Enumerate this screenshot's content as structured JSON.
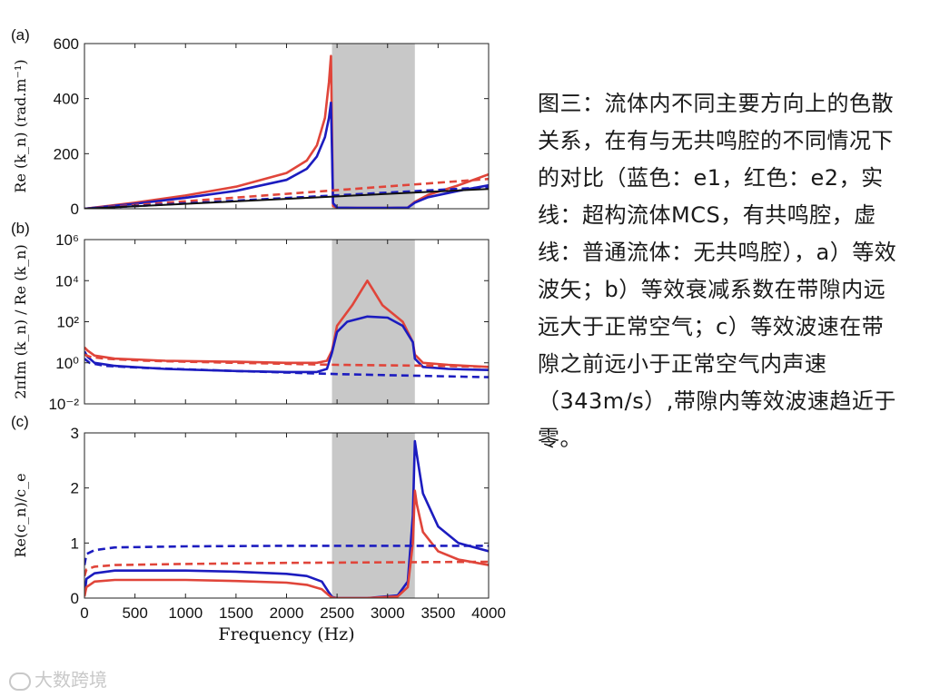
{
  "caption": "图三：流体内不同主要方向上的色散关系，在有与无共鸣腔的不同情况下的对比（蓝色：e1，红色：e2，实线：超构流体MCS，有共鸣腔，虚线：普通流体：无共鸣腔），a）等效波矢；b）等效衰减系数在带隙内远远大于正常空气；c）等效波速在带隙之前远小于正常空气内声速（343m/s）,带隙内等效波速趋近于零。",
  "watermark": "大数跨境",
  "colors": {
    "red": "#e0453a",
    "blue": "#1c1cbf",
    "black": "#111111",
    "band": "#c8c8c8"
  },
  "chart_data": [
    {
      "panel": "(a)",
      "type": "line",
      "ylabel": "Re (k_n)  (rad.m⁻¹)",
      "xlim": [
        0,
        4000
      ],
      "ylim": [
        0,
        600
      ],
      "yticks": [
        "0",
        "200",
        "400",
        "600"
      ],
      "yscale": "linear",
      "bandgap": [
        2450,
        3270
      ],
      "series": [
        {
          "name": "e2, MCS",
          "color": "red",
          "style": "solid",
          "x": [
            0,
            500,
            1000,
            1500,
            2000,
            2200,
            2300,
            2380,
            2420,
            2440,
            2460,
            2500,
            2700,
            3000,
            3200,
            3270,
            3400,
            3700,
            4000
          ],
          "y": [
            0,
            22,
            48,
            80,
            130,
            175,
            230,
            330,
            460,
            555,
            10,
            3,
            3,
            3,
            4,
            25,
            50,
            85,
            125
          ]
        },
        {
          "name": "e1, MCS",
          "color": "blue",
          "style": "solid",
          "x": [
            0,
            500,
            1000,
            1500,
            2000,
            2200,
            2300,
            2380,
            2420,
            2440,
            2450,
            2460,
            2500,
            2700,
            3000,
            3200,
            3270,
            3400,
            3700,
            4000
          ],
          "y": [
            0,
            18,
            40,
            65,
            105,
            145,
            190,
            260,
            330,
            385,
            200,
            20,
            4,
            3,
            3,
            4,
            22,
            42,
            65,
            85
          ]
        },
        {
          "name": "e2, fluid",
          "color": "red",
          "style": "dashed",
          "x": [
            0,
            4000
          ],
          "y": [
            0,
            108
          ]
        },
        {
          "name": "e1, fluid",
          "color": "blue",
          "style": "dashed",
          "x": [
            0,
            4000
          ],
          "y": [
            0,
            78
          ]
        },
        {
          "name": "air",
          "color": "black",
          "style": "solid",
          "x": [
            0,
            4000
          ],
          "y": [
            0,
            72
          ]
        }
      ]
    },
    {
      "panel": "(b)",
      "type": "line",
      "ylabel": "2πIm (k_n) / Re (k_n)",
      "xlim": [
        0,
        4000
      ],
      "ylim": [
        -2,
        6
      ],
      "yticks": [
        "10⁻²",
        "10⁰",
        "10²",
        "10⁴",
        "10⁶"
      ],
      "yscale": "log10 (values are exponents)",
      "bandgap": [
        2450,
        3270
      ],
      "series": [
        {
          "name": "e2, MCS",
          "color": "red",
          "style": "solid",
          "x": [
            0,
            30,
            100,
            300,
            800,
            1500,
            2000,
            2300,
            2400,
            2450,
            2500,
            2650,
            2750,
            2800,
            2850,
            2950,
            3150,
            3250,
            3270,
            3350,
            3600,
            4000
          ],
          "y": [
            0.75,
            0.6,
            0.35,
            0.2,
            0.1,
            0.05,
            0.0,
            0.0,
            0.1,
            0.6,
            1.8,
            2.8,
            3.6,
            4.0,
            3.6,
            2.8,
            2.0,
            1.0,
            0.4,
            0.0,
            -0.1,
            -0.2
          ]
        },
        {
          "name": "e1, MCS",
          "color": "blue",
          "style": "solid",
          "x": [
            0,
            30,
            100,
            300,
            800,
            1500,
            2000,
            2300,
            2400,
            2450,
            2500,
            2600,
            2800,
            3000,
            3150,
            3250,
            3270,
            3350,
            3600,
            4000
          ],
          "y": [
            0.55,
            0.3,
            0.0,
            -0.15,
            -0.3,
            -0.4,
            -0.45,
            -0.45,
            -0.3,
            0.5,
            1.5,
            2.0,
            2.25,
            2.2,
            1.8,
            1.0,
            0.2,
            -0.2,
            -0.3,
            -0.35
          ]
        },
        {
          "name": "e2, fluid",
          "color": "red",
          "style": "dashed",
          "x": [
            0,
            50,
            200,
            600,
            1500,
            2500,
            3500,
            4000
          ],
          "y": [
            0.4,
            0.3,
            0.2,
            0.1,
            0.0,
            -0.1,
            -0.15,
            -0.2
          ]
        },
        {
          "name": "e1, fluid",
          "color": "blue",
          "style": "dashed",
          "x": [
            0,
            50,
            200,
            600,
            1500,
            2500,
            3500,
            4000
          ],
          "y": [
            0.2,
            0.0,
            -0.15,
            -0.25,
            -0.4,
            -0.55,
            -0.65,
            -0.7
          ]
        }
      ]
    },
    {
      "panel": "(c)",
      "type": "line",
      "ylabel": "Re(c_n)/c_e",
      "xlabel": "Frequency (Hz)",
      "xlim": [
        0,
        4000
      ],
      "ylim": [
        0,
        3
      ],
      "xticks": [
        "0",
        "500",
        "1000",
        "1500",
        "2000",
        "2500",
        "3000",
        "3500",
        "4000"
      ],
      "yticks": [
        "0",
        "1",
        "2",
        "3"
      ],
      "yscale": "linear",
      "bandgap": [
        2450,
        3270
      ],
      "series": [
        {
          "name": "e1, MCS",
          "color": "blue",
          "style": "solid",
          "x": [
            0,
            20,
            100,
            300,
            1000,
            1500,
            2000,
            2200,
            2350,
            2420,
            2450,
            2500,
            2800,
            3100,
            3200,
            3250,
            3270,
            3290,
            3350,
            3500,
            3700,
            4000
          ],
          "y": [
            0.05,
            0.35,
            0.45,
            0.5,
            0.5,
            0.48,
            0.44,
            0.4,
            0.3,
            0.1,
            0.02,
            0.0,
            0.0,
            0.05,
            0.3,
            1.5,
            2.85,
            2.6,
            1.9,
            1.3,
            1.0,
            0.85
          ]
        },
        {
          "name": "e2, MCS",
          "color": "red",
          "style": "solid",
          "x": [
            0,
            20,
            100,
            300,
            1000,
            1500,
            2000,
            2200,
            2350,
            2420,
            2450,
            2500,
            2800,
            3100,
            3200,
            3250,
            3270,
            3290,
            3350,
            3500,
            3700,
            4000
          ],
          "y": [
            0.03,
            0.2,
            0.3,
            0.33,
            0.33,
            0.31,
            0.28,
            0.24,
            0.16,
            0.05,
            0.01,
            0.0,
            0.0,
            0.03,
            0.2,
            1.0,
            1.95,
            1.7,
            1.2,
            0.85,
            0.7,
            0.6
          ]
        },
        {
          "name": "e1, fluid",
          "color": "blue",
          "style": "dashed",
          "x": [
            0,
            20,
            100,
            300,
            1000,
            2000,
            3000,
            4000
          ],
          "y": [
            0.6,
            0.8,
            0.87,
            0.92,
            0.94,
            0.95,
            0.95,
            0.95
          ]
        },
        {
          "name": "e2, fluid",
          "color": "red",
          "style": "dashed",
          "x": [
            0,
            20,
            100,
            300,
            1000,
            2000,
            3000,
            4000
          ],
          "y": [
            0.4,
            0.52,
            0.57,
            0.6,
            0.62,
            0.64,
            0.65,
            0.66
          ]
        }
      ]
    }
  ]
}
